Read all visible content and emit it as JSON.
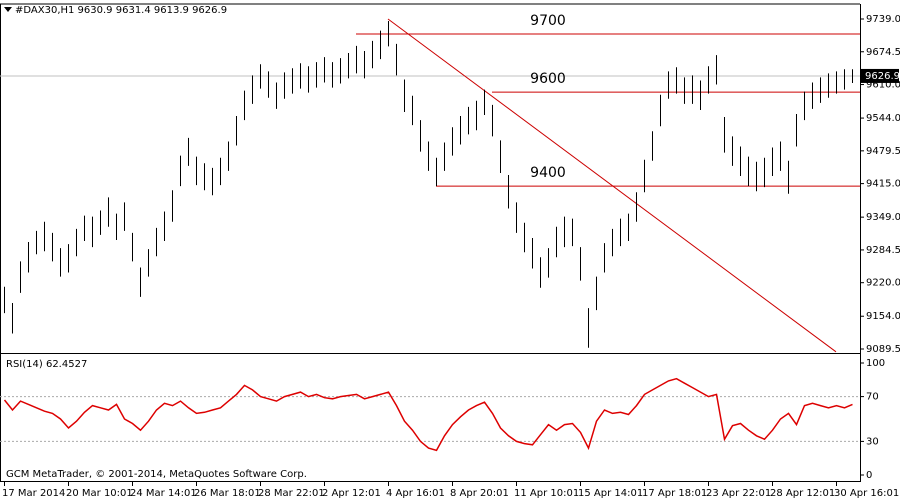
{
  "chart_data": [
    {
      "type": "hilo",
      "title": "#DAX30,H1  9630.9 9631.4 9613.9 9626.9",
      "color": "#000000",
      "categories": [
        "17 Mar 2014",
        null,
        null,
        null,
        null,
        null,
        null,
        null,
        "20 Mar 10:01",
        null,
        null,
        null,
        null,
        null,
        null,
        null,
        "24 Mar 14:01",
        null,
        null,
        null,
        null,
        null,
        null,
        null,
        "26 Mar 18:01",
        null,
        null,
        null,
        null,
        null,
        null,
        null,
        "28 Mar 22:01",
        null,
        null,
        null,
        null,
        null,
        null,
        null,
        "2 Apr 12:01",
        null,
        null,
        null,
        null,
        null,
        null,
        null,
        "4 Apr 16:01",
        null,
        null,
        null,
        null,
        null,
        null,
        null,
        "8 Apr 20:01",
        null,
        null,
        null,
        null,
        null,
        null,
        null,
        "11 Apr 10:01",
        null,
        null,
        null,
        null,
        null,
        null,
        null,
        "15 Apr 14:01",
        null,
        null,
        null,
        null,
        null,
        null,
        null,
        "17 Apr 18:01",
        null,
        null,
        null,
        null,
        null,
        null,
        null,
        "23 Apr 22:01",
        null,
        null,
        null,
        null,
        null,
        null,
        null,
        "28 Apr 12:01",
        null,
        null,
        null,
        null,
        null,
        null,
        null,
        "30 Apr 16:01",
        null,
        null
      ],
      "high": [
        9212,
        9180,
        9262,
        9300,
        9322,
        9340,
        9318,
        9288,
        9296,
        9326,
        9352,
        9350,
        9362,
        9388,
        9356,
        9378,
        9318,
        9250,
        9286,
        9328,
        9360,
        9402,
        9470,
        9505,
        9468,
        9455,
        9446,
        9466,
        9498,
        9548,
        9598,
        9628,
        9650,
        9636,
        9614,
        9634,
        9642,
        9652,
        9646,
        9654,
        9664,
        9654,
        9662,
        9672,
        9686,
        9676,
        9696,
        9716,
        9735,
        9690,
        9620,
        9588,
        9540,
        9498,
        9466,
        9496,
        9526,
        9548,
        9566,
        9578,
        9600,
        9570,
        9500,
        9432,
        9378,
        9338,
        9308,
        9270,
        9288,
        9330,
        9350,
        9346,
        9290,
        9170,
        9232,
        9298,
        9326,
        9346,
        9356,
        9398,
        9462,
        9518,
        9590,
        9636,
        9644,
        9624,
        9628,
        9618,
        9646,
        9668,
        9546,
        9508,
        9488,
        9468,
        9458,
        9466,
        9486,
        9498,
        9460,
        9552,
        9596,
        9614,
        9624,
        9632,
        9636,
        9640,
        9640
      ],
      "low": [
        9160,
        9120,
        9200,
        9240,
        9276,
        9282,
        9262,
        9232,
        9240,
        9272,
        9302,
        9290,
        9314,
        9330,
        9304,
        9322,
        9262,
        9192,
        9232,
        9272,
        9302,
        9340,
        9410,
        9450,
        9412,
        9402,
        9392,
        9412,
        9440,
        9490,
        9540,
        9572,
        9602,
        9584,
        9562,
        9582,
        9592,
        9602,
        9594,
        9604,
        9614,
        9604,
        9612,
        9622,
        9632,
        9622,
        9642,
        9660,
        9685,
        9628,
        9556,
        9530,
        9478,
        9440,
        9410,
        9440,
        9470,
        9492,
        9512,
        9520,
        9550,
        9508,
        9436,
        9366,
        9318,
        9280,
        9248,
        9210,
        9230,
        9270,
        9290,
        9292,
        9224,
        9092,
        9166,
        9240,
        9272,
        9292,
        9302,
        9340,
        9398,
        9460,
        9528,
        9582,
        9592,
        9572,
        9572,
        9560,
        9592,
        9610,
        9476,
        9450,
        9430,
        9410,
        9400,
        9408,
        9430,
        9440,
        9395,
        9488,
        9540,
        9562,
        9574,
        9584,
        9592,
        9600,
        9613
      ],
      "ylim": [
        9083.6,
        9768.5
      ],
      "yticks": [
        {
          "value": 9739,
          "label": "9739.0"
        },
        9674.5,
        {
          "value": 9610,
          "label": "9610.0"
        },
        {
          "value": 9544,
          "label": "9544.0"
        },
        9479.5,
        {
          "value": 9415,
          "label": "9415.0"
        },
        {
          "value": 9349,
          "label": "9349.0"
        },
        9284.5,
        {
          "value": 9220,
          "label": "9220.0"
        },
        {
          "value": 9154,
          "label": "9154.0"
        },
        9089.5
      ],
      "levels": [
        {
          "label": "9700",
          "value": 9709.5,
          "start": 44
        },
        {
          "label": "9600",
          "value": 9595,
          "start": 61
        },
        {
          "label": "9400",
          "value": 9410,
          "start": 54
        }
      ],
      "levels_color": "#cc0000",
      "trendline": {
        "start": [
          48,
          9739
        ],
        "end": [
          104,
          9084
        ],
        "color": "#cc0000"
      },
      "last": {
        "value": 9626.9,
        "label": "9626.9"
      }
    },
    {
      "type": "line",
      "title": "RSI(14) 62.4527",
      "color": "#dd0000",
      "values": [
        67,
        58,
        66,
        63,
        60,
        57,
        55,
        50,
        42,
        48,
        56,
        62,
        60,
        58,
        63,
        50,
        46,
        40,
        48,
        58,
        64,
        62,
        66,
        60,
        55,
        56,
        58,
        60,
        66,
        72,
        80,
        76,
        70,
        68,
        66,
        70,
        72,
        74,
        70,
        72,
        69,
        68,
        70,
        71,
        72,
        68,
        70,
        72,
        74,
        62,
        48,
        40,
        30,
        24,
        22,
        35,
        45,
        52,
        58,
        62,
        65,
        55,
        42,
        35,
        30,
        28,
        27,
        36,
        45,
        40,
        45,
        46,
        38,
        24,
        48,
        58,
        55,
        56,
        54,
        62,
        72,
        76,
        80,
        84,
        86,
        82,
        78,
        74,
        70,
        72,
        32,
        44,
        46,
        40,
        35,
        32,
        40,
        50,
        55,
        45,
        62,
        64,
        62,
        60,
        62,
        60,
        63
      ],
      "ylim": [
        -5.36,
        106.25
      ],
      "yticks": [
        100,
        70,
        30,
        0
      ],
      "levels": [
        70,
        30
      ]
    }
  ],
  "footer": "GCM MetaTrader, © 2001-2014, MetaQuotes Software Corp."
}
